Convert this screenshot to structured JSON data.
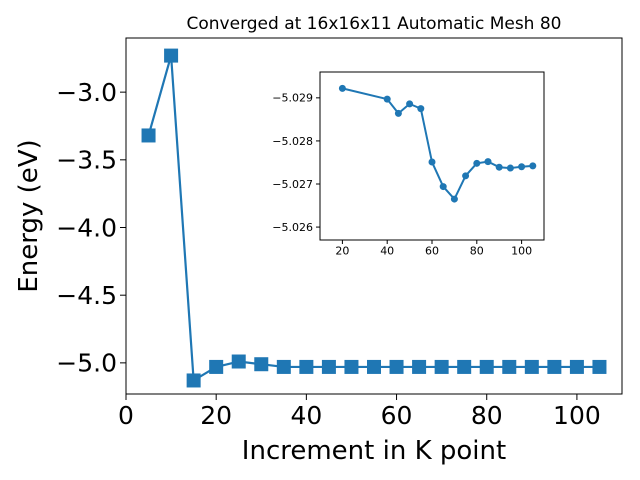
{
  "chart_data": [
    {
      "type": "line",
      "title": "Converged at 16x16x11 Automatic Mesh 80",
      "xlabel": "Increment in K point",
      "ylabel": "Energy (eV)",
      "xlim": [
        0,
        110
      ],
      "ylim": [
        -5.23,
        -2.6
      ],
      "xticks": [
        0,
        20,
        40,
        60,
        80,
        100
      ],
      "yticks": [
        -5.0,
        -4.5,
        -4.0,
        -3.5,
        -3.0
      ],
      "xtick_labels": [
        "0",
        "20",
        "40",
        "60",
        "80",
        "100"
      ],
      "ytick_labels": [
        "−5.0",
        "−4.5",
        "−4.0",
        "−3.5",
        "−3.0"
      ],
      "marker": "square",
      "color": "#1f77b4",
      "series": [
        {
          "x": [
            5,
            10,
            15,
            20,
            25,
            30,
            35,
            40,
            45,
            50,
            55,
            60,
            65,
            70,
            75,
            80,
            85,
            90,
            95,
            100,
            105
          ],
          "y": [
            -3.32,
            -2.73,
            -5.13,
            -5.03,
            -4.99,
            -5.01,
            -5.03,
            -5.03,
            -5.03,
            -5.03,
            -5.03,
            -5.03,
            -5.03,
            -5.03,
            -5.03,
            -5.03,
            -5.03,
            -5.03,
            -5.03,
            -5.03,
            -5.03
          ]
        }
      ]
    },
    {
      "type": "line",
      "title": "",
      "xlabel": "",
      "ylabel": "",
      "inset": true,
      "xlim": [
        10,
        110
      ],
      "ylim": [
        -5.0296,
        -5.0257
      ],
      "y_axis_inverted": true,
      "xticks": [
        20,
        40,
        60,
        80,
        100
      ],
      "yticks": [
        -5.029,
        -5.028,
        -5.027,
        -5.026
      ],
      "xtick_labels": [
        "20",
        "40",
        "60",
        "80",
        "100"
      ],
      "ytick_labels": [
        "−5.029",
        "−5.028",
        "−5.027",
        "−5.026"
      ],
      "marker": "circle",
      "color": "#1f77b4",
      "series": [
        {
          "x": [
            20,
            40,
            45,
            50,
            55,
            60,
            65,
            70,
            75,
            80,
            85,
            90,
            95,
            100,
            105
          ],
          "y": [
            -5.02922,
            -5.02897,
            -5.02864,
            -5.02886,
            -5.02875,
            -5.02751,
            -5.02694,
            -5.02665,
            -5.02719,
            -5.02748,
            -5.02752,
            -5.02739,
            -5.02737,
            -5.0274,
            -5.02742
          ]
        }
      ]
    }
  ]
}
